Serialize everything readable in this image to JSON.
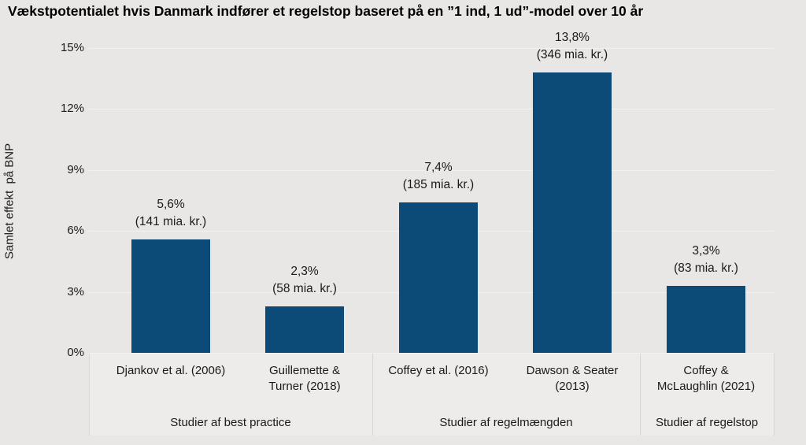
{
  "chart_data": {
    "type": "bar",
    "title": "Vækstpotentialet hvis Danmark indfører et regelstop baseret på en ”1 ind, 1 ud”-model over 10 år",
    "ylabel": "Samlet effekt  på BNP",
    "xlabel": "",
    "ylim": [
      0,
      15
    ],
    "grid": true,
    "legend": "none",
    "yticks": [
      {
        "value": 0,
        "label": "0%"
      },
      {
        "value": 3,
        "label": "3%"
      },
      {
        "value": 6,
        "label": "6%"
      },
      {
        "value": 9,
        "label": "9%"
      },
      {
        "value": 12,
        "label": "12%"
      },
      {
        "value": 15,
        "label": "15%"
      }
    ],
    "bars": [
      {
        "category_lines": [
          "Djankov et al. (2006)"
        ],
        "value": 5.6,
        "pct_label": "5,6%",
        "amount_label": "(141 mia. kr.)"
      },
      {
        "category_lines": [
          "Guillemette &",
          "Turner (2018)"
        ],
        "value": 2.3,
        "pct_label": "2,3%",
        "amount_label": "(58 mia. kr.)"
      },
      {
        "category_lines": [
          "Coffey et al. (2016)"
        ],
        "value": 7.4,
        "pct_label": "7,4%",
        "amount_label": "(185 mia. kr.)"
      },
      {
        "category_lines": [
          "Dawson & Seater",
          "(2013)"
        ],
        "value": 13.8,
        "pct_label": "13,8%",
        "amount_label": "(346 mia. kr.)"
      },
      {
        "category_lines": [
          "Coffey &",
          "McLaughlin (2021)"
        ],
        "value": 3.3,
        "pct_label": "3,3%",
        "amount_label": "(83 mia. kr.)"
      }
    ],
    "groups": [
      {
        "label": "Studier af best practice",
        "start": 0,
        "end": 1
      },
      {
        "label": "Studier af regelmængden",
        "start": 2,
        "end": 3
      },
      {
        "label": "Studier af regelstop",
        "start": 4,
        "end": 4
      }
    ],
    "colors": {
      "bar": "#0c4b77",
      "background": "#e8e7e5",
      "axis_area_background": "#edecea",
      "gridline": "#f2f1ef",
      "separator": "#d8d7d5",
      "text": "#1a1a1a"
    }
  }
}
